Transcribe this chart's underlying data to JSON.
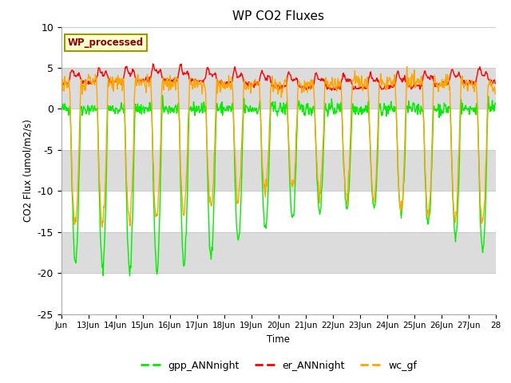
{
  "title": "WP CO2 Fluxes",
  "xlabel": "Time",
  "ylabel": "CO2 Flux (umol/m2/s)",
  "ylim": [
    -25,
    10
  ],
  "xlim_days": [
    12.0,
    28.0
  ],
  "annotation_text": "WP_processed",
  "annotation_color": "#8B0000",
  "annotation_bg": "#FFFFCC",
  "annotation_edge": "#999900",
  "gpp_color": "#00EE00",
  "er_color": "#FF0000",
  "wc_color": "#FFA500",
  "legend_labels": [
    "gpp_ANNnight",
    "er_ANNnight",
    "wc_gf"
  ],
  "gray_band_color": "#DCDCDC",
  "yticks": [
    10,
    5,
    0,
    -5,
    -10,
    -15,
    -20,
    -25
  ],
  "xtick_labels": [
    "Jun",
    "13Jun",
    "14Jun",
    "15Jun",
    "16Jun",
    "17Jun",
    "18Jun",
    "19Jun",
    "20Jun",
    "21Jun",
    "22Jun",
    "23Jun",
    "24Jun",
    "25Jun",
    "26Jun",
    "27Jun",
    "28"
  ],
  "xtick_positions": [
    12.0,
    13.0,
    14.0,
    15.0,
    16.0,
    17.0,
    18.0,
    19.0,
    20.0,
    21.0,
    22.0,
    23.0,
    24.0,
    25.0,
    26.0,
    27.0,
    28.0
  ]
}
